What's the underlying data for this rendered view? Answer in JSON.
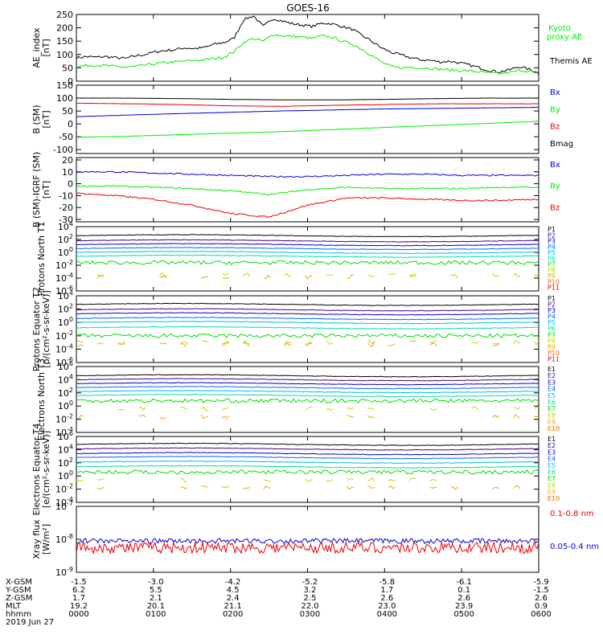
{
  "title": "GOES-16",
  "colors": {
    "black": "#000000",
    "green": "#00ee00",
    "blue": "#0000dd",
    "red": "#ee0000",
    "spec": [
      "#000000",
      "#440088",
      "#0000cc",
      "#0066ff",
      "#00bbee",
      "#00ddaa",
      "#00dd00",
      "#bbdd00",
      "#eeaa00",
      "#ee6600",
      "#dd0000"
    ]
  },
  "chart_data": [
    {
      "type": "line",
      "id": "ae",
      "ylabel": "AE_index [nT]",
      "ylim": [
        0,
        250
      ],
      "yticks": [
        "250",
        "200",
        "150",
        "100",
        "50",
        "0"
      ],
      "tickvals": [
        250,
        200,
        150,
        100,
        50,
        0
      ],
      "legend": [
        {
          "name": "Kyoto proxy AE",
          "color": "green"
        },
        {
          "name": "Themis AE",
          "color": "black"
        }
      ],
      "series": [
        {
          "name": "Themis AE",
          "color": "black",
          "values": [
            88,
            92,
            90,
            92,
            88,
            85,
            95,
            100,
            110,
            115,
            118,
            125,
            122,
            126,
            138,
            145,
            160,
            230,
            245,
            205,
            235,
            225,
            215,
            210,
            205,
            218,
            215,
            205,
            195,
            172,
            150,
            125,
            108,
            98,
            88,
            80,
            78,
            72,
            75,
            68,
            60,
            50,
            40,
            35,
            42,
            55,
            45,
            30
          ]
        },
        {
          "name": "Kyoto proxy AE",
          "color": "green",
          "values": [
            55,
            58,
            60,
            58,
            55,
            52,
            55,
            60,
            65,
            70,
            72,
            75,
            78,
            80,
            85,
            90,
            110,
            145,
            160,
            150,
            175,
            170,
            168,
            165,
            160,
            170,
            165,
            150,
            140,
            120,
            98,
            72,
            55,
            50,
            52,
            50,
            48,
            45,
            42,
            40,
            38,
            35,
            30,
            28,
            32,
            40,
            38,
            30
          ]
        }
      ]
    },
    {
      "type": "line",
      "id": "bsm",
      "ylabel": "B (SM) [nT]",
      "ylim": [
        -115,
        150
      ],
      "yticks": [
        "150",
        "100",
        "50",
        "0",
        "-50",
        "-100"
      ],
      "tickvals": [
        150,
        100,
        50,
        0,
        -50,
        -100
      ],
      "legend": [
        {
          "name": "Bx",
          "color": "blue"
        },
        {
          "name": "By",
          "color": "green"
        },
        {
          "name": "Bz",
          "color": "red"
        },
        {
          "name": "Bmag",
          "color": "black"
        }
      ],
      "series": [
        {
          "name": "Bmag",
          "color": "black",
          "values": [
            100,
            100,
            98,
            95,
            93,
            93,
            95,
            98,
            100,
            100
          ]
        },
        {
          "name": "Bz",
          "color": "red",
          "values": [
            80,
            78,
            75,
            70,
            68,
            72,
            75,
            78,
            78,
            78
          ]
        },
        {
          "name": "Bx",
          "color": "blue",
          "values": [
            28,
            34,
            40,
            45,
            50,
            54,
            58,
            60,
            62,
            64
          ]
        },
        {
          "name": "By",
          "color": "green",
          "values": [
            -52,
            -48,
            -42,
            -36,
            -30,
            -22,
            -14,
            -6,
            2,
            10
          ]
        }
      ]
    },
    {
      "type": "line",
      "id": "bigrf",
      "ylabel": "B (SM)-IGRF (SM) [nT]",
      "ylim": [
        -32,
        22
      ],
      "yticks": [
        "20",
        "10",
        "0",
        "-10",
        "-20",
        "-30"
      ],
      "tickvals": [
        20,
        10,
        0,
        -10,
        -20,
        -30
      ],
      "legend": [
        {
          "name": "Bx",
          "color": "blue"
        },
        {
          "name": "By",
          "color": "green"
        },
        {
          "name": "Bz",
          "color": "red"
        }
      ],
      "series": [
        {
          "name": "Bx",
          "color": "blue",
          "values": [
            10,
            10,
            9,
            8,
            7,
            6,
            6,
            7,
            8,
            8,
            7,
            7,
            7
          ]
        },
        {
          "name": "By",
          "color": "green",
          "values": [
            -2,
            -2,
            -3,
            -4,
            -6,
            -9,
            -5,
            -3,
            -4,
            -4,
            -4,
            -3,
            -3
          ]
        },
        {
          "name": "Bz",
          "color": "red",
          "values": [
            -8,
            -10,
            -13,
            -18,
            -25,
            -28,
            -18,
            -12,
            -12,
            -13,
            -14,
            -14,
            -13
          ]
        }
      ]
    },
    {
      "type": "line",
      "id": "p1",
      "ylabel": "Protons North T1",
      "ylim": [
        -6,
        4
      ],
      "log": true,
      "yticks": [
        "10^4",
        "10^2",
        "10^0",
        "10^-2",
        "10^-4",
        "10^-6"
      ],
      "tickvals": [
        4,
        2,
        0,
        -2,
        -4,
        -6
      ],
      "legend": [
        "P1",
        "P2",
        "P3",
        "P4",
        "P5",
        "P6",
        "P7",
        "P8",
        "P9",
        "P10",
        "P11"
      ],
      "levels": [
        2.6,
        1.8,
        1.2,
        0.6,
        0.0,
        -0.6,
        -1.6,
        -3.5,
        -3.8
      ]
    },
    {
      "type": "line",
      "id": "p2",
      "ylabel": "Protons Equator T2 [p/(cm²-s-sr-keV)]",
      "ylim": [
        -6,
        4
      ],
      "log": true,
      "yticks": [
        "10^4",
        "10^2",
        "10^0",
        "10^-2",
        "10^-4",
        "10^-6"
      ],
      "tickvals": [
        4,
        2,
        0,
        -2,
        -4,
        -6
      ],
      "legend": [
        "P1",
        "P2",
        "P3",
        "P4",
        "P5",
        "P6",
        "P7",
        "P8",
        "P9",
        "P10",
        "P11"
      ],
      "levels": [
        2.7,
        1.9,
        1.3,
        0.6,
        0.0,
        -0.8,
        -2.0,
        -3.0,
        -3.3
      ]
    },
    {
      "type": "line",
      "id": "e3",
      "ylabel": "Electrons North T3",
      "ylim": [
        -4,
        6
      ],
      "log": true,
      "yticks": [
        "10^6",
        "10^4",
        "10^2",
        "10^0",
        "10^-2",
        "10^-4"
      ],
      "tickvals": [
        6,
        4,
        2,
        0,
        -2,
        -4
      ],
      "legend": [
        "E1",
        "E2",
        "E3",
        "E4",
        "E5",
        "E6",
        "E7",
        "E8",
        "E9",
        "E10"
      ],
      "levels": [
        4.6,
        4.0,
        3.4,
        2.8,
        2.2,
        1.6,
        0.8,
        -0.4,
        -1.6
      ]
    },
    {
      "type": "line",
      "id": "e4",
      "ylabel": "Electrons Equator T4 [e/(cm²-s-sr-keV)]",
      "ylim": [
        -4,
        6
      ],
      "log": true,
      "yticks": [
        "10^6",
        "10^4",
        "10^2",
        "10^0",
        "10^-2",
        "10^-4"
      ],
      "tickvals": [
        6,
        4,
        2,
        0,
        -2,
        -4
      ],
      "legend": [
        "E1",
        "E2",
        "E3",
        "E4",
        "E5",
        "E6",
        "E7",
        "E8",
        "E9",
        "E10"
      ],
      "levels": [
        4.8,
        4.1,
        3.4,
        2.8,
        2.1,
        1.4,
        0.6,
        -0.6,
        -1.8
      ]
    },
    {
      "type": "line",
      "id": "xray",
      "ylabel": "Xray flux [W/m²]",
      "ylim": [
        -9,
        -7
      ],
      "log": true,
      "yticks": [
        "10^-7",
        "10^-8",
        "10^-9"
      ],
      "tickvals": [
        -7,
        -8,
        -9
      ],
      "legend": [
        {
          "name": "0.1-0.8 nm",
          "color": "red"
        },
        {
          "name": "0.05-0.4 nm",
          "color": "blue"
        }
      ],
      "series": [
        {
          "name": "0.05-0.4 nm",
          "color": "blue",
          "level": -8.05
        },
        {
          "name": "0.1-0.8 nm",
          "color": "red",
          "level": -8.25
        }
      ]
    }
  ],
  "xaxis": {
    "row_labels": [
      "X-GSM",
      "Y-GSM",
      "Z-GSM",
      "MLT",
      "hhmm"
    ],
    "columns": [
      [
        "-1.5",
        "6.2",
        "1.7",
        "19.2",
        "0000"
      ],
      [
        "-3.0",
        "5.5",
        "2.1",
        "20.1",
        "0100"
      ],
      [
        "-4.2",
        "4.5",
        "2.4",
        "21.1",
        "0200"
      ],
      [
        "-5.2",
        "3.2",
        "2.5",
        "22.0",
        "0300"
      ],
      [
        "-5.8",
        "1.7",
        "2.6",
        "23.0",
        "0400"
      ],
      [
        "-6.1",
        "0.1",
        "2.6",
        "23.9",
        "0500"
      ],
      [
        "-5.9",
        "-1.5",
        "2.6",
        "0.9",
        "0600"
      ]
    ],
    "date": "2019 Jun 27"
  }
}
